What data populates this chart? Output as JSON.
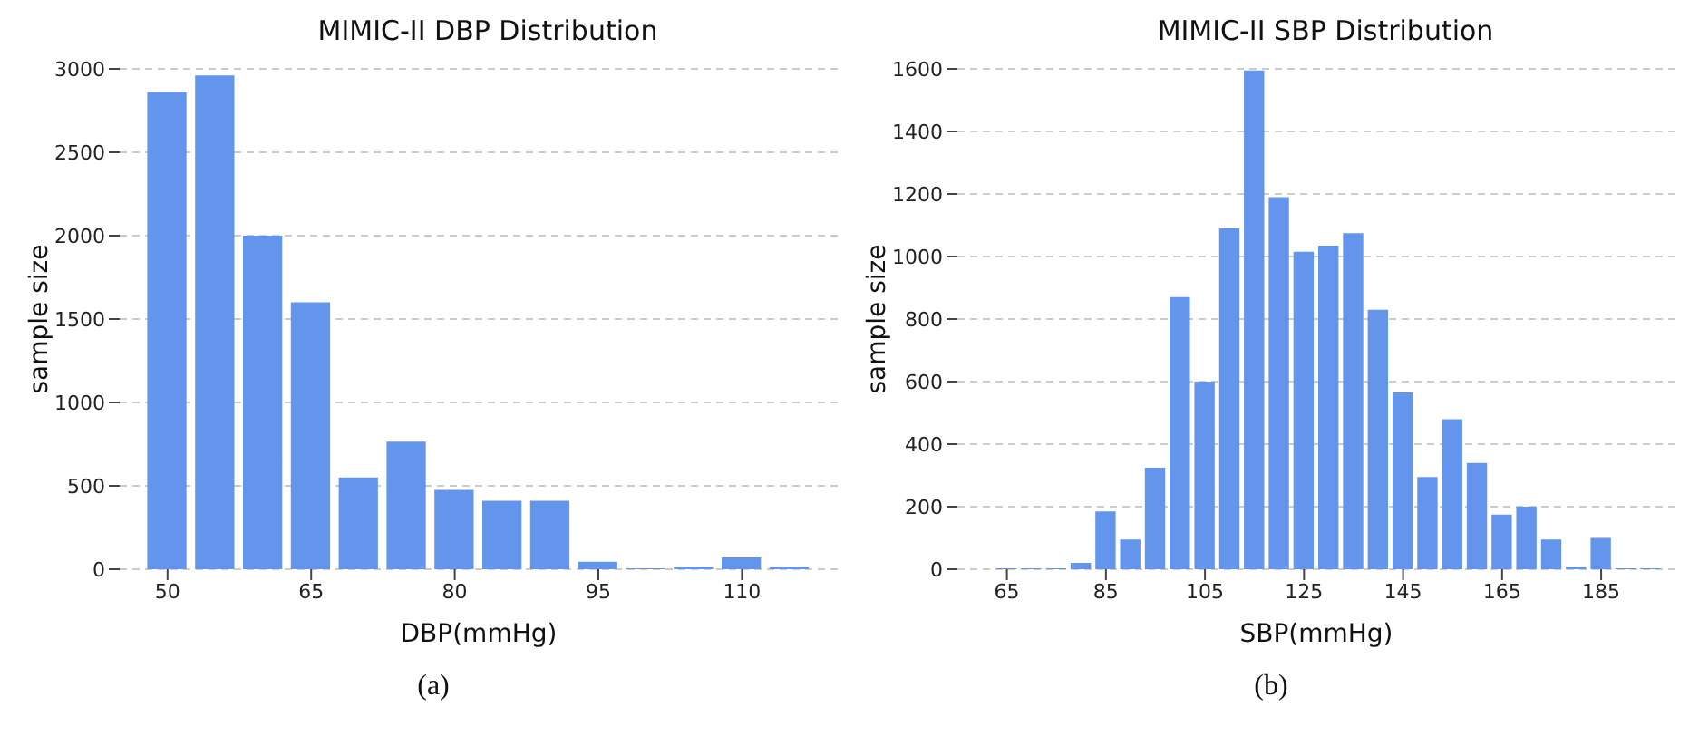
{
  "chart_data": [
    {
      "type": "histogram",
      "title": "MIMIC-II DBP Distribution",
      "xlabel": "DBP(mmHg)",
      "ylabel": "sample size",
      "annotations": [
        "(a)"
      ],
      "color": "#6495ed",
      "bins": [
        47.5,
        52.5,
        57.5,
        62.5,
        67.5,
        72.5,
        77.5,
        82.5,
        87.5,
        92.5,
        97.5,
        102.5,
        107.5,
        112.5,
        117.5
      ],
      "values": [
        2860,
        2960,
        2000,
        1600,
        550,
        765,
        475,
        410,
        410,
        45,
        5,
        15,
        70,
        15
      ],
      "xlim": [
        45,
        120
      ],
      "xticks": [
        50,
        65,
        80,
        95,
        110
      ],
      "ylim": [
        0,
        3000
      ],
      "yticks": [
        0,
        500,
        1000,
        1500,
        2000,
        2500,
        3000
      ],
      "grid": "y"
    },
    {
      "type": "histogram",
      "title": "MIMIC-II SBP Distribution",
      "xlabel": "SBP(mmHg)",
      "ylabel": "sample size",
      "annotations": [
        "(b)"
      ],
      "color": "#6495ed",
      "bins": [
        62.5,
        67.5,
        72.5,
        77.5,
        82.5,
        87.5,
        92.5,
        97.5,
        102.5,
        107.5,
        112.5,
        117.5,
        122.5,
        127.5,
        132.5,
        137.5,
        142.5,
        147.5,
        152.5,
        157.5,
        162.5,
        167.5,
        172.5,
        177.5,
        182.5,
        187.5,
        192.5,
        197.5
      ],
      "values": [
        3,
        3,
        3,
        20,
        185,
        95,
        325,
        870,
        600,
        1090,
        1595,
        1190,
        1015,
        1035,
        1075,
        830,
        565,
        295,
        480,
        340,
        175,
        200,
        95,
        8,
        100,
        3,
        3
      ],
      "xlim": [
        55,
        200
      ],
      "xticks": [
        65,
        85,
        105,
        125,
        145,
        165,
        185
      ],
      "ylim": [
        0,
        1600
      ],
      "yticks": [
        0,
        200,
        400,
        600,
        800,
        1000,
        1200,
        1400,
        1600
      ],
      "grid": "y"
    }
  ]
}
